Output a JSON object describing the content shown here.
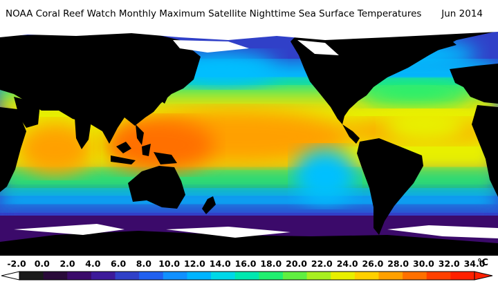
{
  "title": {
    "text": "NOAA Coral Reef Watch Monthly Maximum Satellite Nighttime Sea Surface Temperatures",
    "date": "Jun 2014"
  },
  "legend": {
    "labels": [
      "-2.0",
      "0.0",
      "2.0",
      "4.0",
      "6.0",
      "8.0",
      "10.0",
      "12.0",
      "14.0",
      "16.0",
      "18.0",
      "20.0",
      "22.0",
      "24.0",
      "26.0",
      "28.0",
      "30.0",
      "32.0",
      "34.0"
    ],
    "unit": "°C",
    "colors": [
      "#1a1a1a",
      "#2a0a3a",
      "#3b0a6a",
      "#3d1a9a",
      "#3040c8",
      "#2060f0",
      "#1090ff",
      "#00b4ff",
      "#00d8e8",
      "#00e8b0",
      "#20f070",
      "#60f040",
      "#a8f020",
      "#e8f000",
      "#ffd000",
      "#ffa000",
      "#ff7000",
      "#ff4000",
      "#ff2000"
    ]
  },
  "map_colors": {
    "land": "#000000",
    "ice": "#ffffff",
    "polar": "#3b0a6a",
    "cold": "#3040c8",
    "cool": "#00c0ff",
    "temperate": "#20f070",
    "warm": "#e8f000",
    "hot": "#ffa000",
    "hottest": "#ff7000"
  }
}
